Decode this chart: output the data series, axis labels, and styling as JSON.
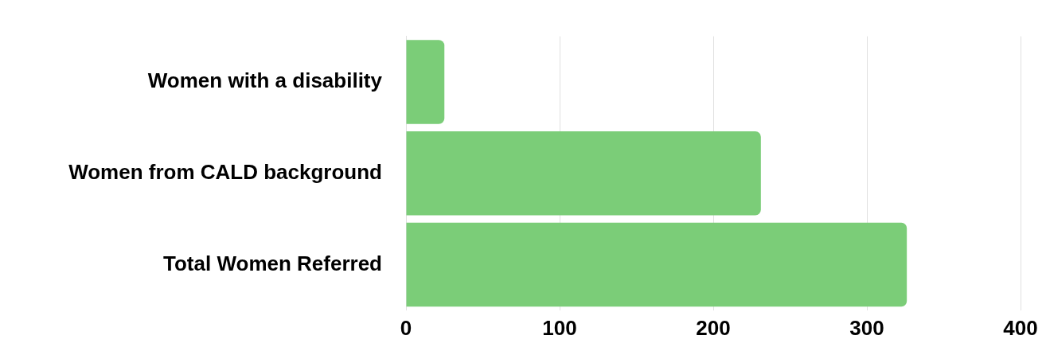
{
  "chart_data": {
    "type": "bar",
    "orientation": "horizontal",
    "categories": [
      "Women with a disability",
      "Women from CALD background",
      "Total Women Referred"
    ],
    "values": [
      25,
      231,
      326
    ],
    "color": "#7bcd78",
    "xlim": [
      0,
      400
    ],
    "xticks": [
      0,
      100,
      200,
      300,
      400
    ],
    "grid": "x",
    "legend": false
  }
}
